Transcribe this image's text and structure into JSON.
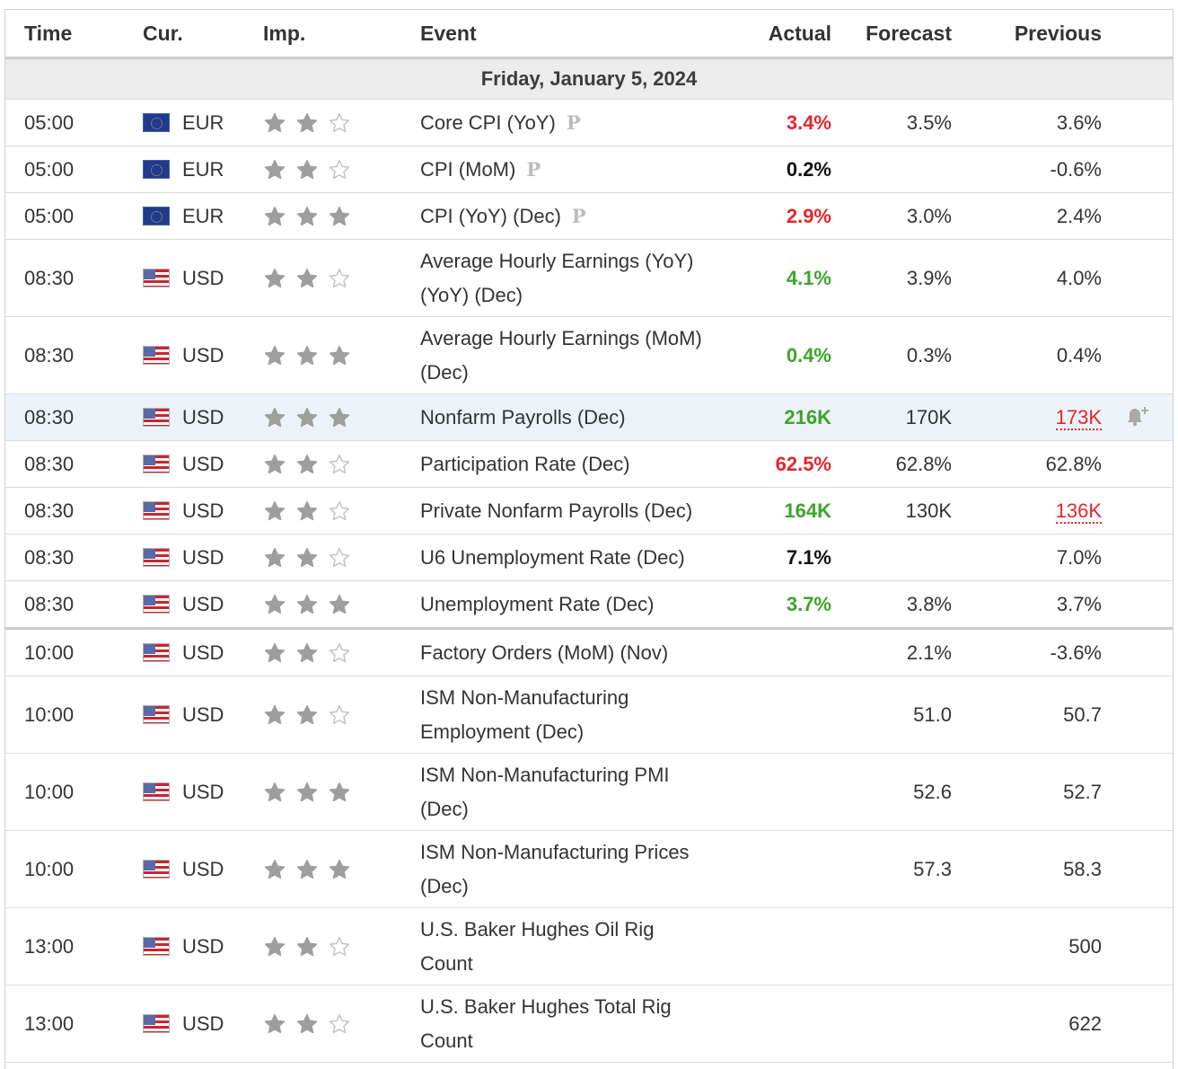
{
  "columns": {
    "time": "Time",
    "cur": "Cur.",
    "imp": "Imp.",
    "event": "Event",
    "actual": "Actual",
    "forecast": "Forecast",
    "previous": "Previous"
  },
  "date_label": "Friday, January 5, 2024",
  "rows": [
    {
      "time": "05:00",
      "flag": "eu-flag-icon",
      "cur": "EUR",
      "stars": 2,
      "event": "Core CPI (YoY)",
      "prelim": "P",
      "actual": "3.4%",
      "actual_color": "red",
      "forecast": "3.5%",
      "previous": "3.6%"
    },
    {
      "time": "05:00",
      "flag": "eu-flag-icon",
      "cur": "EUR",
      "stars": 2,
      "event": "CPI (MoM)",
      "prelim": "P",
      "actual": "0.2%",
      "actual_color": "black",
      "forecast": "",
      "previous": "-0.6%"
    },
    {
      "time": "05:00",
      "flag": "eu-flag-icon",
      "cur": "EUR",
      "stars": 3,
      "event": "CPI (YoY) (Dec)",
      "prelim": "P",
      "actual": "2.9%",
      "actual_color": "red",
      "forecast": "3.0%",
      "previous": "2.4%"
    },
    {
      "time": "08:30",
      "flag": "us-flag-icon",
      "cur": "USD",
      "stars": 2,
      "event": "Average Hourly Earnings (YoY)",
      "event2": "(YoY) (Dec)",
      "actual": "4.1%",
      "actual_color": "green",
      "forecast": "3.9%",
      "previous": "4.0%"
    },
    {
      "time": "08:30",
      "flag": "us-flag-icon",
      "cur": "USD",
      "stars": 3,
      "event": "Average Hourly Earnings (MoM)",
      "event2": "(Dec)",
      "actual": "0.4%",
      "actual_color": "green",
      "forecast": "0.3%",
      "previous": "0.4%"
    },
    {
      "time": "08:30",
      "flag": "us-flag-icon",
      "cur": "USD",
      "stars": 3,
      "event": "Nonfarm Payrolls (Dec)",
      "actual": "216K",
      "actual_color": "green",
      "forecast": "170K",
      "previous": "173K",
      "previous_revised": true,
      "highlight": true,
      "alert": true
    },
    {
      "time": "08:30",
      "flag": "us-flag-icon",
      "cur": "USD",
      "stars": 2,
      "event": "Participation Rate (Dec)",
      "actual": "62.5%",
      "actual_color": "red",
      "forecast": "62.8%",
      "previous": "62.8%"
    },
    {
      "time": "08:30",
      "flag": "us-flag-icon",
      "cur": "USD",
      "stars": 2,
      "event": "Private Nonfarm Payrolls (Dec)",
      "actual": "164K",
      "actual_color": "green",
      "forecast": "130K",
      "previous": "136K",
      "previous_revised": true
    },
    {
      "time": "08:30",
      "flag": "us-flag-icon",
      "cur": "USD",
      "stars": 2,
      "event": "U6 Unemployment Rate (Dec)",
      "actual": "7.1%",
      "actual_color": "black",
      "forecast": "",
      "previous": "7.0%"
    },
    {
      "time": "08:30",
      "flag": "us-flag-icon",
      "cur": "USD",
      "stars": 3,
      "event": "Unemployment Rate (Dec)",
      "actual": "3.7%",
      "actual_color": "green",
      "forecast": "3.8%",
      "previous": "3.7%",
      "thick": true
    },
    {
      "time": "10:00",
      "flag": "us-flag-icon",
      "cur": "USD",
      "stars": 2,
      "event": "Factory Orders (MoM) (Nov)",
      "actual": "",
      "forecast": "2.1%",
      "previous": "-3.6%"
    },
    {
      "time": "10:00",
      "flag": "us-flag-icon",
      "cur": "USD",
      "stars": 2,
      "event": "ISM Non-Manufacturing",
      "event2": "Employment (Dec)",
      "actual": "",
      "forecast": "51.0",
      "previous": "50.7"
    },
    {
      "time": "10:00",
      "flag": "us-flag-icon",
      "cur": "USD",
      "stars": 3,
      "event": "ISM Non-Manufacturing PMI",
      "event2": "(Dec)",
      "actual": "",
      "forecast": "52.6",
      "previous": "52.7"
    },
    {
      "time": "10:00",
      "flag": "us-flag-icon",
      "cur": "USD",
      "stars": 3,
      "event": "ISM Non-Manufacturing Prices",
      "event2": "(Dec)",
      "actual": "",
      "forecast": "57.3",
      "previous": "58.3"
    },
    {
      "time": "13:00",
      "flag": "us-flag-icon",
      "cur": "USD",
      "stars": 2,
      "event": "U.S. Baker Hughes Oil Rig",
      "event2": "Count",
      "actual": "",
      "forecast": "",
      "previous": "500"
    },
    {
      "time": "13:00",
      "flag": "us-flag-icon",
      "cur": "USD",
      "stars": 2,
      "event": "U.S. Baker Hughes Total Rig",
      "event2": "Count",
      "actual": "",
      "forecast": "",
      "previous": "622"
    }
  ]
}
